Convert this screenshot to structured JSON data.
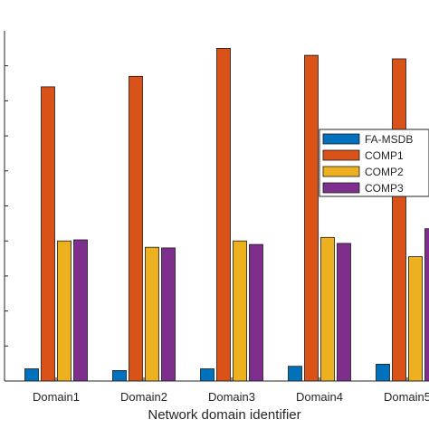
{
  "chart_data": {
    "type": "bar",
    "title": "",
    "xlabel": "Network domain identifier",
    "ylabel": "",
    "ylim": [
      0,
      10
    ],
    "grid": false,
    "legend_position": "right",
    "categories": [
      "Domain1",
      "Domain2",
      "Domain3",
      "Domain4",
      "Domain5"
    ],
    "series": [
      {
        "name": "FA-MSDB",
        "color": "#0072BD",
        "values": [
          0.35,
          0.3,
          0.35,
          0.42,
          0.48
        ]
      },
      {
        "name": "COMP1",
        "color": "#D95319",
        "values": [
          8.4,
          8.7,
          9.5,
          9.3,
          9.2
        ]
      },
      {
        "name": "COMP2",
        "color": "#EDB120",
        "values": [
          4.0,
          3.82,
          4.0,
          4.1,
          3.55
        ]
      },
      {
        "name": "COMP3",
        "color": "#7E2F8E",
        "values": [
          4.03,
          3.8,
          3.9,
          3.93,
          4.35
        ]
      }
    ]
  }
}
